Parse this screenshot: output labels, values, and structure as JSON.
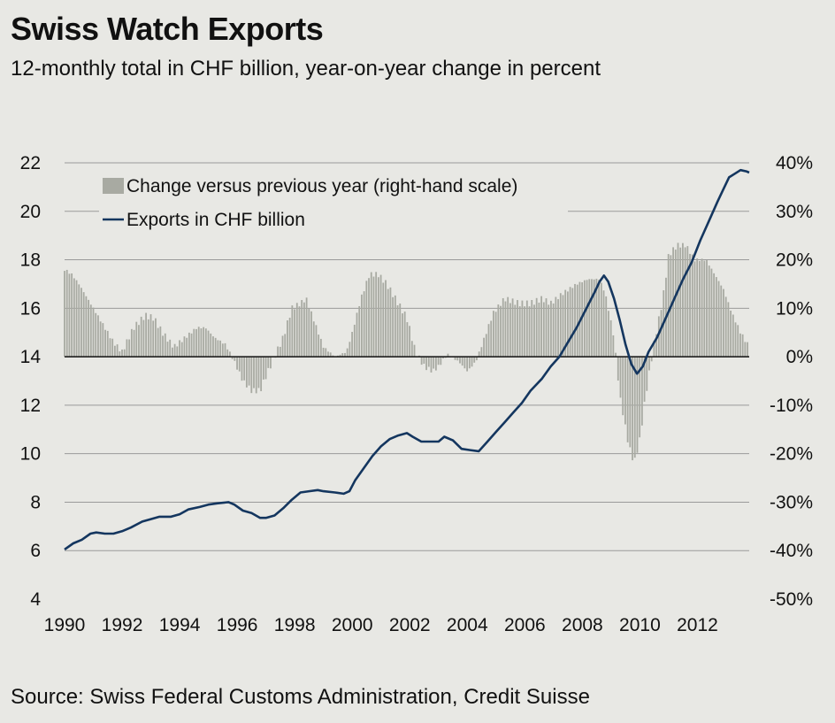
{
  "title": "Swiss Watch Exports",
  "subtitle": "12-monthly total in CHF billion, year-on-year change in percent",
  "source": "Source: Swiss Federal Customs Administration, Credit Suisse",
  "colors": {
    "background": "#e8e8e4",
    "bars": "#a8aaa2",
    "line": "#14365f",
    "grid": "#9a9a9a"
  },
  "chart_data": {
    "type": "line",
    "grid": true,
    "legend_position": "top-left",
    "legend": [
      {
        "label": "Change versus previous year (right-hand scale)",
        "kind": "bar",
        "color": "#a8aaa2"
      },
      {
        "label": "Exports in CHF billion",
        "kind": "line",
        "color": "#14365f"
      }
    ],
    "x_range": [
      1990,
      2013.8
    ],
    "x_ticks": [
      "1990",
      "1992",
      "1994",
      "1996",
      "1998",
      "2000",
      "2002",
      "2004",
      "2006",
      "2008",
      "2010",
      "2012"
    ],
    "y_left": {
      "range": [
        4,
        22
      ],
      "ticks": [
        "22",
        "20",
        "18",
        "16",
        "14",
        "12",
        "10",
        "8",
        "6",
        "4"
      ]
    },
    "y_right": {
      "range": [
        -50,
        40
      ],
      "ticks": [
        "40%",
        "30%",
        "20%",
        "10%",
        "0%",
        "-10%",
        "-20%",
        "-30%",
        "-40%",
        "-50%"
      ]
    },
    "series": [
      {
        "name": "Exports in CHF billion",
        "axis": "left",
        "points": [
          [
            1990.0,
            6.05
          ],
          [
            1990.3,
            6.3
          ],
          [
            1990.6,
            6.45
          ],
          [
            1990.9,
            6.7
          ],
          [
            1991.1,
            6.75
          ],
          [
            1991.4,
            6.7
          ],
          [
            1991.7,
            6.7
          ],
          [
            1992.0,
            6.8
          ],
          [
            1992.3,
            6.95
          ],
          [
            1992.7,
            7.2
          ],
          [
            1993.0,
            7.3
          ],
          [
            1993.3,
            7.4
          ],
          [
            1993.7,
            7.4
          ],
          [
            1994.0,
            7.5
          ],
          [
            1994.3,
            7.7
          ],
          [
            1994.7,
            7.8
          ],
          [
            1995.0,
            7.9
          ],
          [
            1995.3,
            7.95
          ],
          [
            1995.7,
            8.0
          ],
          [
            1995.9,
            7.9
          ],
          [
            1996.2,
            7.65
          ],
          [
            1996.5,
            7.55
          ],
          [
            1996.8,
            7.35
          ],
          [
            1997.0,
            7.35
          ],
          [
            1997.3,
            7.45
          ],
          [
            1997.6,
            7.75
          ],
          [
            1997.9,
            8.1
          ],
          [
            1998.2,
            8.4
          ],
          [
            1998.5,
            8.45
          ],
          [
            1998.8,
            8.5
          ],
          [
            1999.0,
            8.45
          ],
          [
            1999.4,
            8.4
          ],
          [
            1999.7,
            8.35
          ],
          [
            1999.9,
            8.45
          ],
          [
            2000.1,
            8.9
          ],
          [
            2000.4,
            9.4
          ],
          [
            2000.7,
            9.9
          ],
          [
            2001.0,
            10.3
          ],
          [
            2001.3,
            10.6
          ],
          [
            2001.6,
            10.75
          ],
          [
            2001.9,
            10.85
          ],
          [
            2002.1,
            10.7
          ],
          [
            2002.4,
            10.5
          ],
          [
            2002.7,
            10.5
          ],
          [
            2003.0,
            10.5
          ],
          [
            2003.2,
            10.7
          ],
          [
            2003.5,
            10.55
          ],
          [
            2003.8,
            10.2
          ],
          [
            2004.1,
            10.15
          ],
          [
            2004.4,
            10.1
          ],
          [
            2004.7,
            10.5
          ],
          [
            2005.0,
            10.9
          ],
          [
            2005.3,
            11.3
          ],
          [
            2005.6,
            11.7
          ],
          [
            2005.9,
            12.1
          ],
          [
            2006.2,
            12.6
          ],
          [
            2006.6,
            13.1
          ],
          [
            2006.9,
            13.6
          ],
          [
            2007.2,
            14.0
          ],
          [
            2007.5,
            14.6
          ],
          [
            2007.8,
            15.2
          ],
          [
            2008.1,
            15.9
          ],
          [
            2008.4,
            16.6
          ],
          [
            2008.6,
            17.1
          ],
          [
            2008.75,
            17.35
          ],
          [
            2008.9,
            17.1
          ],
          [
            2009.1,
            16.4
          ],
          [
            2009.3,
            15.5
          ],
          [
            2009.5,
            14.5
          ],
          [
            2009.7,
            13.7
          ],
          [
            2009.9,
            13.3
          ],
          [
            2010.1,
            13.6
          ],
          [
            2010.3,
            14.2
          ],
          [
            2010.6,
            14.8
          ],
          [
            2010.9,
            15.6
          ],
          [
            2011.2,
            16.4
          ],
          [
            2011.5,
            17.2
          ],
          [
            2011.8,
            17.9
          ],
          [
            2012.1,
            18.8
          ],
          [
            2012.4,
            19.6
          ],
          [
            2012.7,
            20.4
          ],
          [
            2012.9,
            20.9
          ],
          [
            2013.1,
            21.4
          ],
          [
            2013.3,
            21.55
          ],
          [
            2013.5,
            21.7
          ],
          [
            2013.7,
            21.65
          ],
          [
            2013.8,
            21.6
          ]
        ]
      },
      {
        "name": "Change versus previous year (right-hand scale)",
        "axis": "right",
        "type": "bar",
        "bar_step": 0.0833,
        "keyframes": [
          [
            1990.0,
            18
          ],
          [
            1990.25,
            17
          ],
          [
            1990.5,
            15
          ],
          [
            1990.9,
            11
          ],
          [
            1991.3,
            7
          ],
          [
            1991.7,
            3
          ],
          [
            1992.0,
            1
          ],
          [
            1992.4,
            6
          ],
          [
            1992.8,
            8.5
          ],
          [
            1993.1,
            8
          ],
          [
            1993.4,
            5
          ],
          [
            1993.8,
            2
          ],
          [
            1994.2,
            4
          ],
          [
            1994.6,
            6
          ],
          [
            1994.9,
            6
          ],
          [
            1995.2,
            4
          ],
          [
            1995.6,
            2.5
          ],
          [
            1995.9,
            -1
          ],
          [
            1996.2,
            -5
          ],
          [
            1996.5,
            -7
          ],
          [
            1996.8,
            -7
          ],
          [
            1997.0,
            -4
          ],
          [
            1997.3,
            0
          ],
          [
            1997.6,
            4
          ],
          [
            1997.9,
            10
          ],
          [
            1998.2,
            11
          ],
          [
            1998.4,
            12
          ],
          [
            1998.7,
            7
          ],
          [
            1999.0,
            2
          ],
          [
            1999.4,
            0
          ],
          [
            1999.8,
            1
          ],
          [
            2000.0,
            5
          ],
          [
            2000.3,
            12
          ],
          [
            2000.6,
            17
          ],
          [
            2000.9,
            17
          ],
          [
            2001.2,
            15
          ],
          [
            2001.5,
            12
          ],
          [
            2001.9,
            8
          ],
          [
            2002.2,
            1
          ],
          [
            2002.5,
            -2
          ],
          [
            2002.8,
            -3
          ],
          [
            2003.0,
            -2
          ],
          [
            2003.3,
            0.5
          ],
          [
            2003.7,
            -1
          ],
          [
            2004.0,
            -3
          ],
          [
            2004.3,
            -1
          ],
          [
            2004.6,
            4
          ],
          [
            2004.9,
            9
          ],
          [
            2005.3,
            12
          ],
          [
            2005.8,
            11
          ],
          [
            2006.2,
            11
          ],
          [
            2006.6,
            12
          ],
          [
            2006.9,
            11
          ],
          [
            2007.3,
            13
          ],
          [
            2007.8,
            15
          ],
          [
            2008.2,
            16
          ],
          [
            2008.6,
            16
          ],
          [
            2008.8,
            13
          ],
          [
            2009.1,
            4
          ],
          [
            2009.3,
            -8
          ],
          [
            2009.6,
            -18
          ],
          [
            2009.8,
            -22
          ],
          [
            2010.0,
            -17
          ],
          [
            2010.2,
            -8
          ],
          [
            2010.5,
            3
          ],
          [
            2010.8,
            12
          ],
          [
            2011.0,
            21
          ],
          [
            2011.3,
            23
          ],
          [
            2011.6,
            23
          ],
          [
            2011.9,
            20
          ],
          [
            2012.3,
            20
          ],
          [
            2012.6,
            17
          ],
          [
            2012.9,
            14
          ],
          [
            2013.2,
            9
          ],
          [
            2013.5,
            5
          ],
          [
            2013.8,
            2
          ]
        ]
      }
    ]
  }
}
